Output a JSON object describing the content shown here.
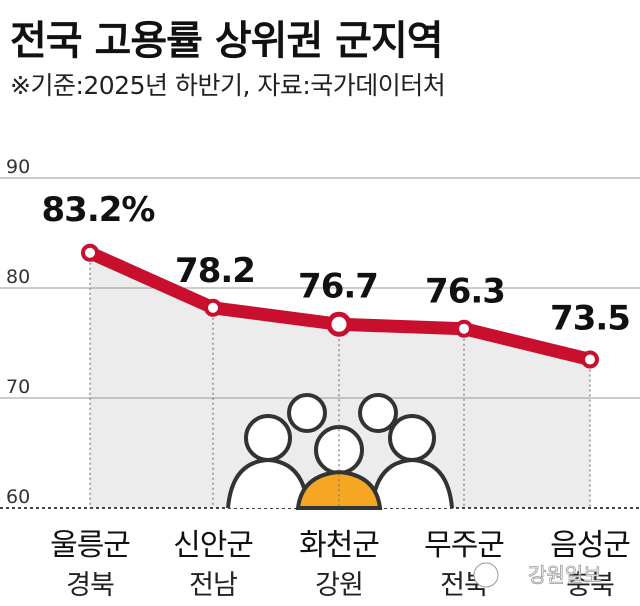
{
  "title": "전국 고용률 상위권 군지역",
  "subtitle": "※기준:2025년 하반기, 자료:국가데이터처",
  "watermark": "강원일보",
  "colors": {
    "line": "#c8102e",
    "area": "#ececec",
    "grid": "#999999",
    "people_fill": "#f5a623",
    "people_outline": "#333333"
  },
  "chart_data": {
    "type": "line",
    "title": "전국 고용률 상위권 군지역",
    "categories": [
      "울릉군",
      "신안군",
      "화천군",
      "무주군",
      "음성군"
    ],
    "sub_categories": [
      "경북",
      "전남",
      "강원",
      "전북",
      "충북"
    ],
    "values": [
      83.2,
      78.2,
      76.7,
      76.3,
      73.5
    ],
    "value_labels": [
      "83.2%",
      "78.2",
      "76.7",
      "76.3",
      "73.5"
    ],
    "yticks": [
      "90",
      "80",
      "70",
      "60"
    ],
    "ylim": [
      60,
      90
    ],
    "highlight_index": 2,
    "grid": true
  }
}
